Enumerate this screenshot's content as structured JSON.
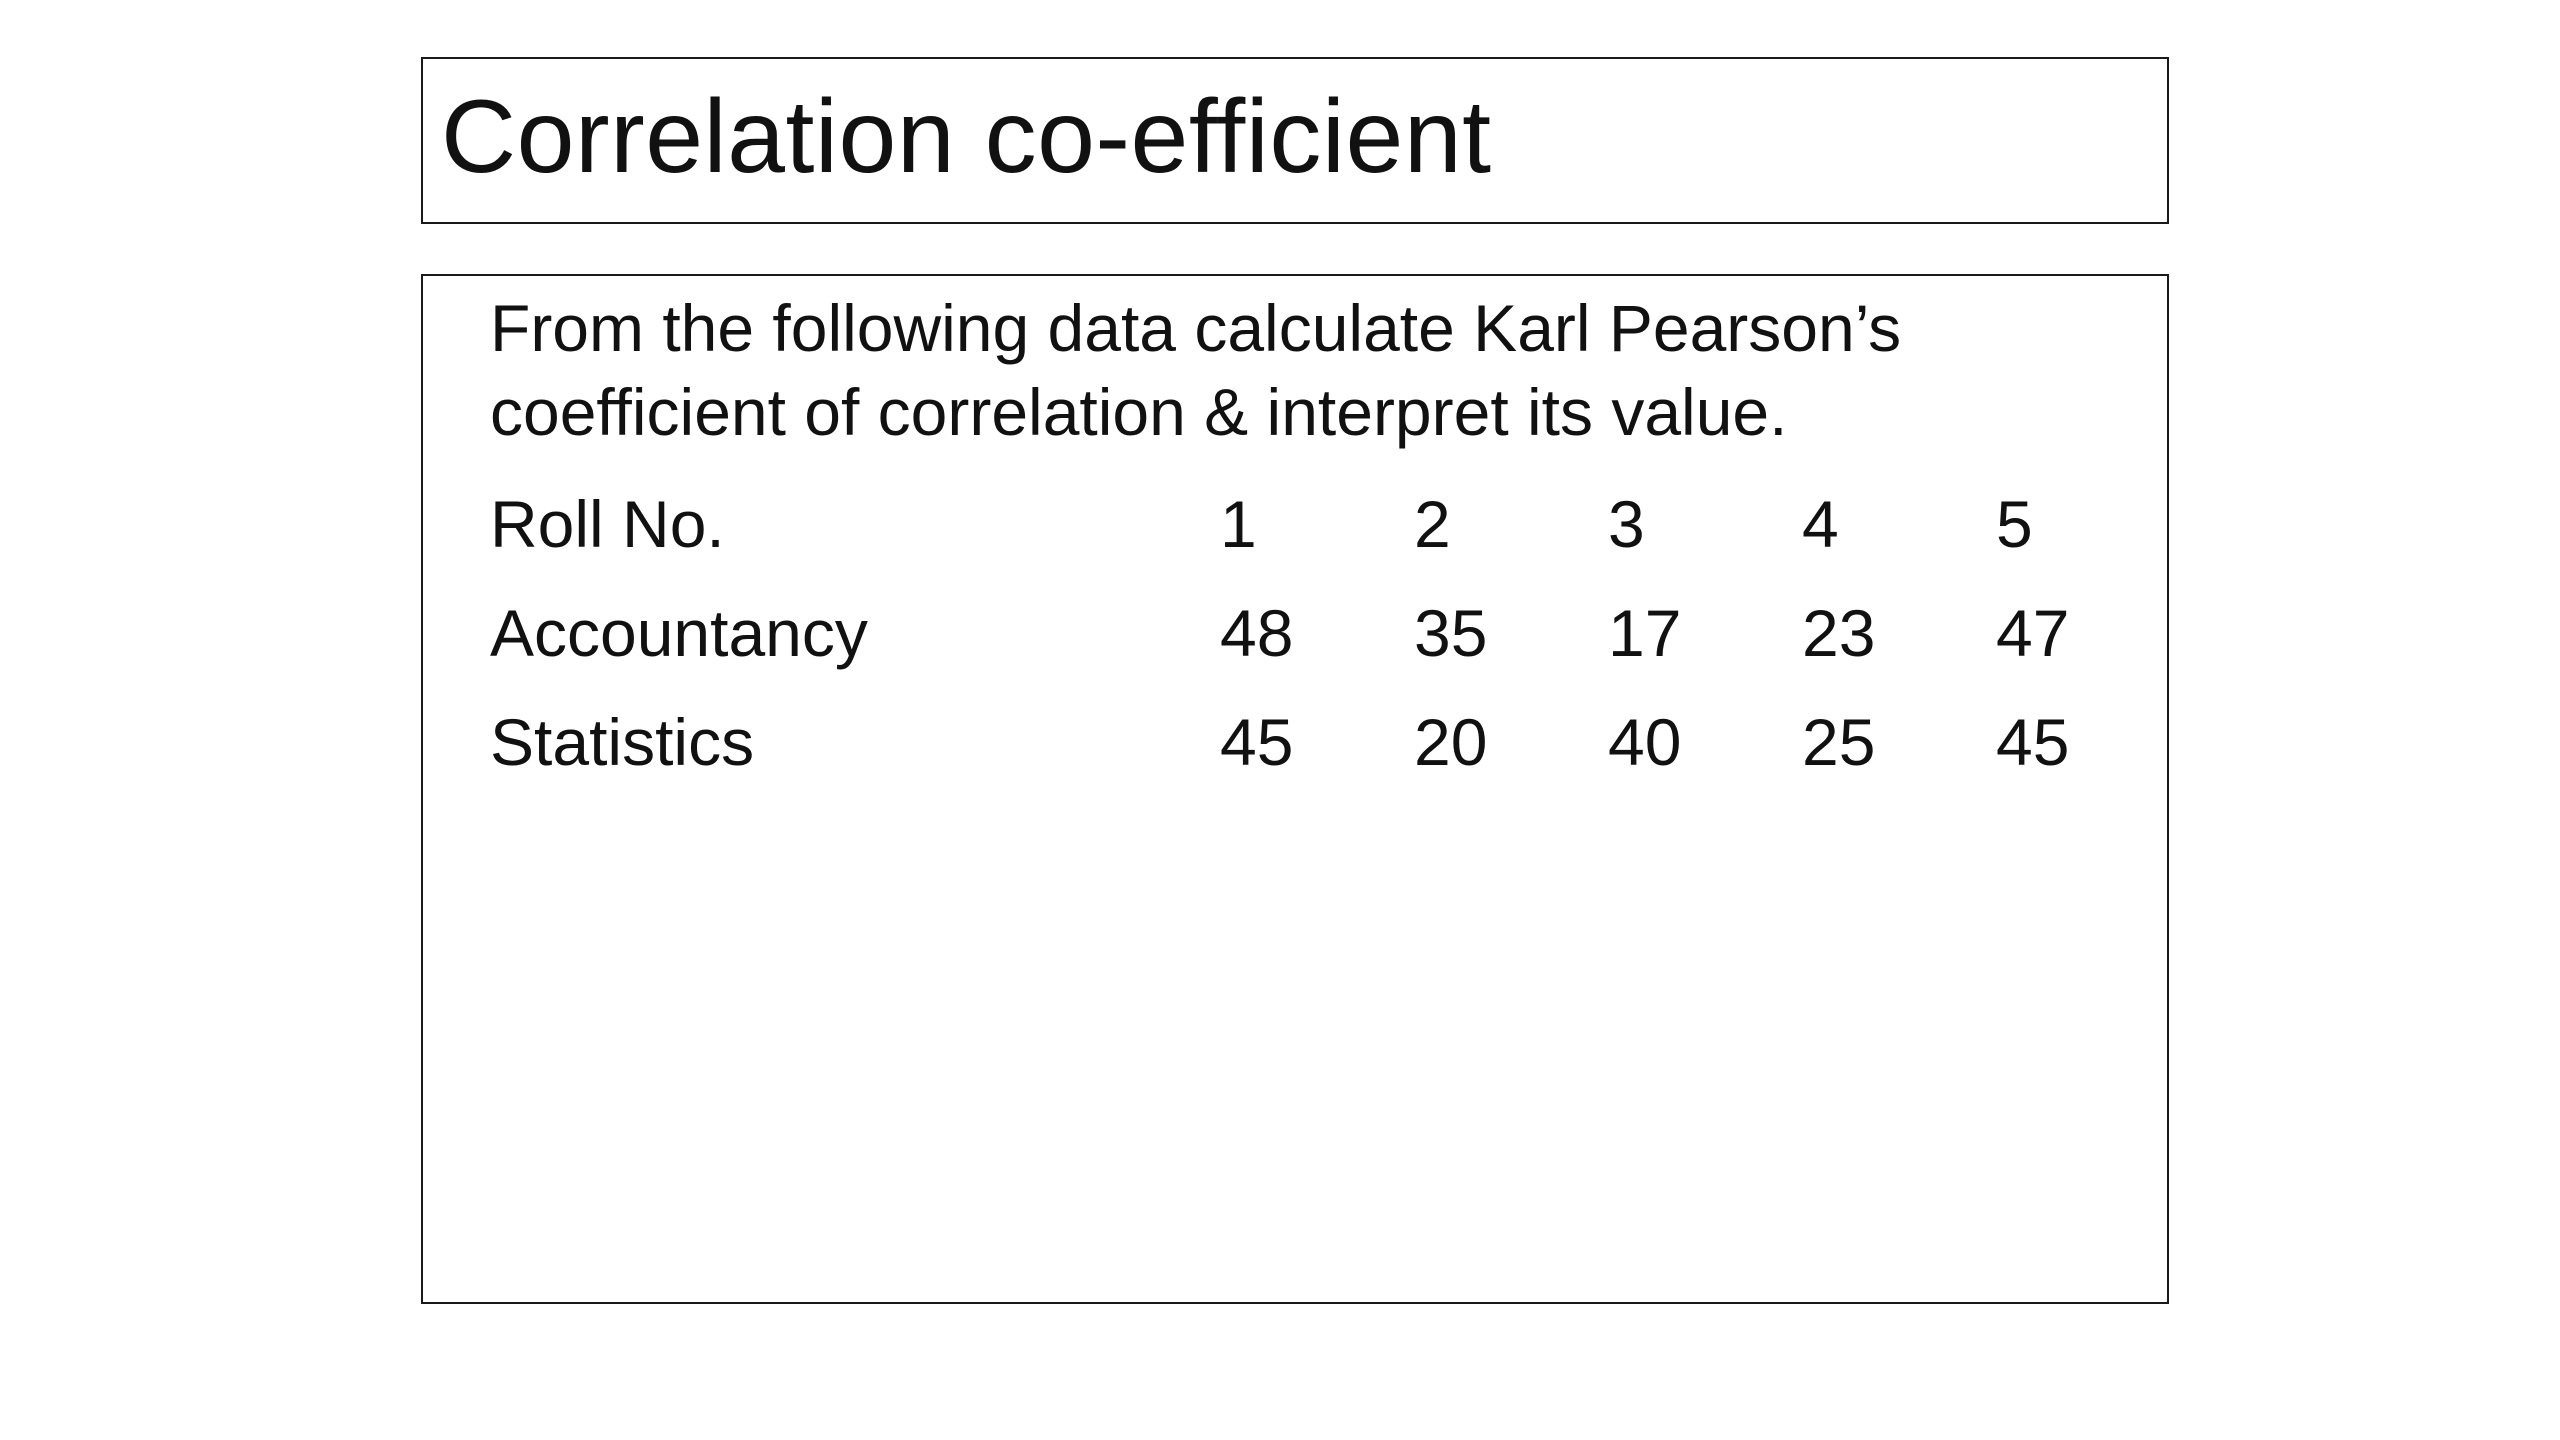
{
  "slide": {
    "title": "Correlation co-efficient",
    "prompt": "From the following data calculate Karl Pearson’s coefficient of correlation & interpret its value."
  },
  "table": {
    "rows": [
      {
        "label": "Roll No.",
        "values": [
          "1",
          "2",
          "3",
          "4",
          "5"
        ]
      },
      {
        "label": "Accountancy",
        "values": [
          "48",
          "35",
          "17",
          "23",
          "47"
        ]
      },
      {
        "label": "Statistics",
        "values": [
          "45",
          "20",
          "40",
          "25",
          "45"
        ]
      }
    ]
  }
}
